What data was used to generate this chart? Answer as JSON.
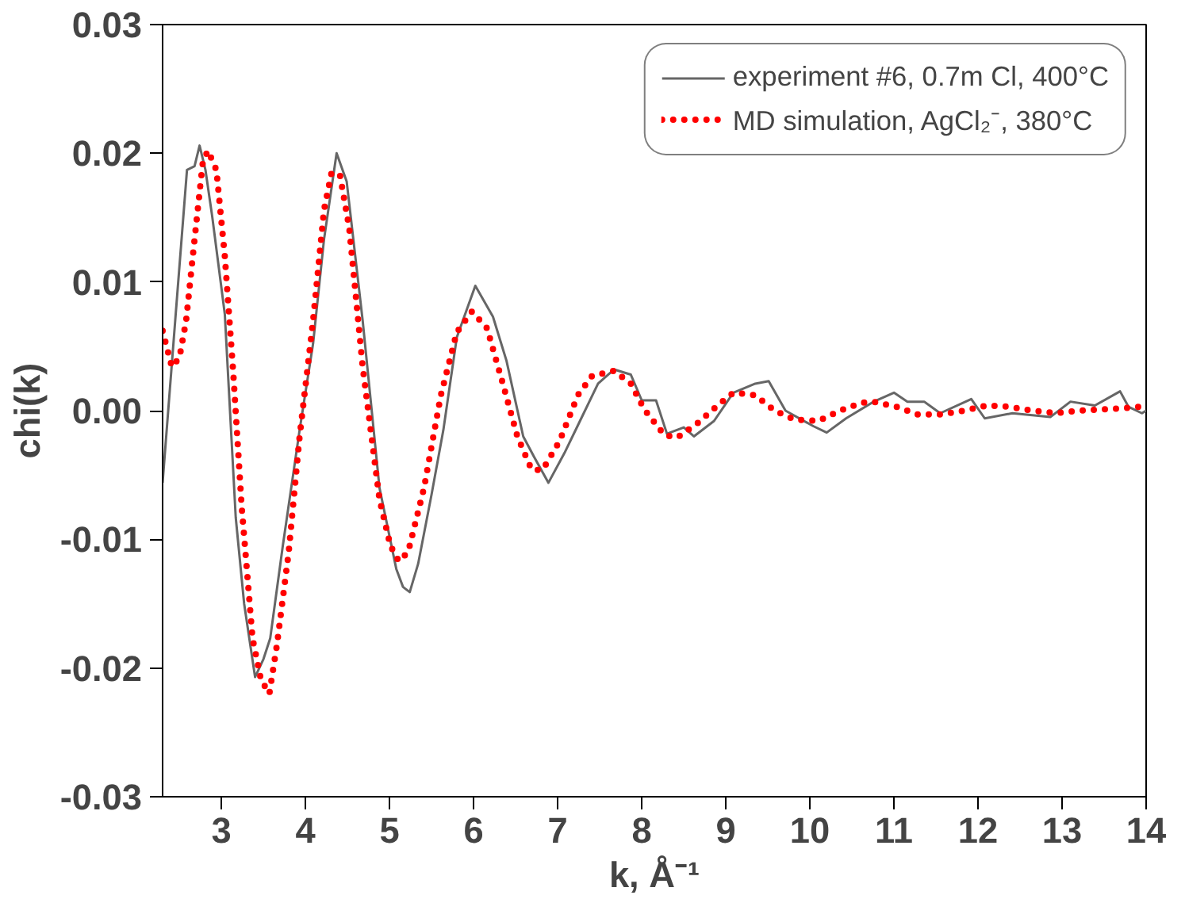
{
  "chart_data": {
    "type": "line",
    "xlabel": "k, Å⁻¹",
    "ylabel": "chi(k)",
    "xlim": [
      2.3,
      14
    ],
    "ylim": [
      -0.03,
      0.03
    ],
    "xticks": [
      3,
      4,
      5,
      6,
      7,
      8,
      9,
      10,
      11,
      12,
      13,
      14
    ],
    "yticks": [
      {
        "value": -0.03,
        "label": "-0.03"
      },
      {
        "value": -0.02,
        "label": "-0.02"
      },
      {
        "value": -0.01,
        "label": "-0.01"
      },
      {
        "value": 0,
        "label": "0.00"
      },
      {
        "value": 0.01,
        "label": "0.01"
      },
      {
        "value": 0.02,
        "label": "0.02"
      },
      {
        "value": 0.03,
        "label": "0.03"
      }
    ],
    "grid": false,
    "legend": "top right",
    "series": [
      {
        "name": "experiment #6, 0.7m Cl, 400°C",
        "color": "#666666",
        "line_style": "solid",
        "x": [
          2.3,
          2.45,
          2.59,
          2.68,
          2.74,
          2.81,
          2.89,
          3.04,
          3.17,
          3.27,
          3.4,
          3.5,
          3.58,
          3.73,
          3.93,
          4.09,
          4.22,
          4.37,
          4.49,
          4.68,
          4.88,
          5.08,
          5.16,
          5.24,
          5.34,
          5.5,
          5.64,
          5.8,
          6.02,
          6.23,
          6.39,
          6.59,
          6.72,
          6.89,
          7.08,
          7.28,
          7.48,
          7.67,
          7.87,
          8.0,
          8.17,
          8.3,
          8.5,
          8.62,
          8.86,
          9.09,
          9.35,
          9.51,
          9.71,
          10.04,
          10.2,
          10.43,
          10.76,
          11.0,
          11.16,
          11.36,
          11.55,
          11.92,
          12.08,
          12.41,
          12.86,
          13.1,
          13.39,
          13.69,
          13.79,
          13.95,
          14.0
        ],
        "values": [
          -0.0056,
          0.007,
          0.0187,
          0.019,
          0.0206,
          0.0187,
          0.0151,
          0.0075,
          -0.0083,
          -0.015,
          -0.0207,
          -0.0193,
          -0.0177,
          -0.0105,
          -0.0015,
          0.0052,
          0.0133,
          0.02,
          0.0178,
          0.007,
          -0.006,
          -0.0123,
          -0.0137,
          -0.0141,
          -0.0119,
          -0.0065,
          -0.0015,
          0.0057,
          0.0097,
          0.0073,
          0.0039,
          -0.002,
          -0.0036,
          -0.0056,
          -0.0033,
          -0.0006,
          0.0021,
          0.0032,
          0.0028,
          0.0008,
          0.0008,
          -0.0018,
          -0.0013,
          -0.002,
          -0.0008,
          0.0014,
          0.0021,
          0.0023,
          0.0,
          -0.0012,
          -0.0017,
          -0.0006,
          0.0007,
          0.0014,
          0.0007,
          0.0007,
          -0.0002,
          0.0009,
          -0.0006,
          -0.0002,
          -0.0005,
          0.0007,
          0.0004,
          0.0015,
          0.0003,
          -0.0002,
          0.0
        ]
      },
      {
        "name": "MD simulation, AgCl₂⁻, 380°C",
        "color": "#ff0000",
        "line_style": "dotted",
        "x": [
          2.3,
          2.41,
          2.5,
          2.58,
          2.68,
          2.78,
          2.84,
          2.94,
          3.04,
          3.14,
          3.24,
          3.37,
          3.47,
          3.57,
          3.66,
          3.8,
          3.93,
          4.09,
          4.22,
          4.31,
          4.41,
          4.52,
          4.68,
          4.88,
          5.01,
          5.11,
          5.22,
          5.41,
          5.61,
          5.8,
          5.98,
          6.16,
          6.33,
          6.52,
          6.69,
          6.82,
          7.02,
          7.24,
          7.41,
          7.67,
          7.87,
          8.03,
          8.27,
          8.42,
          8.66,
          8.92,
          9.09,
          9.35,
          9.58,
          9.82,
          10.1,
          10.36,
          10.61,
          10.75,
          11.03,
          11.28,
          11.55,
          11.83,
          12.11,
          12.37,
          12.65,
          12.93,
          13.2,
          13.47,
          13.75,
          13.92,
          14.0
        ],
        "values": [
          0.0062,
          0.0034,
          0.0041,
          0.007,
          0.0133,
          0.0194,
          0.0202,
          0.0187,
          0.012,
          0.003,
          -0.0074,
          -0.0177,
          -0.0209,
          -0.022,
          -0.0182,
          -0.011,
          -0.002,
          0.007,
          0.0156,
          0.0185,
          0.0183,
          0.0142,
          0.0034,
          -0.0069,
          -0.0105,
          -0.0117,
          -0.011,
          -0.006,
          0.0012,
          0.0061,
          0.0077,
          0.0064,
          0.0025,
          -0.002,
          -0.0046,
          -0.0046,
          -0.0024,
          0.0012,
          0.0027,
          0.0031,
          0.0021,
          0.0001,
          -0.0019,
          -0.0021,
          -0.001,
          0.0005,
          0.0014,
          0.0012,
          0.0,
          -0.0007,
          -0.0008,
          0.0,
          0.0006,
          0.0007,
          0.0003,
          -0.0003,
          -0.0003,
          0.0,
          0.0004,
          0.0003,
          0.0,
          -0.0002,
          0.0,
          0.0001,
          0.0002,
          0.0003,
          0.0003
        ]
      }
    ]
  }
}
